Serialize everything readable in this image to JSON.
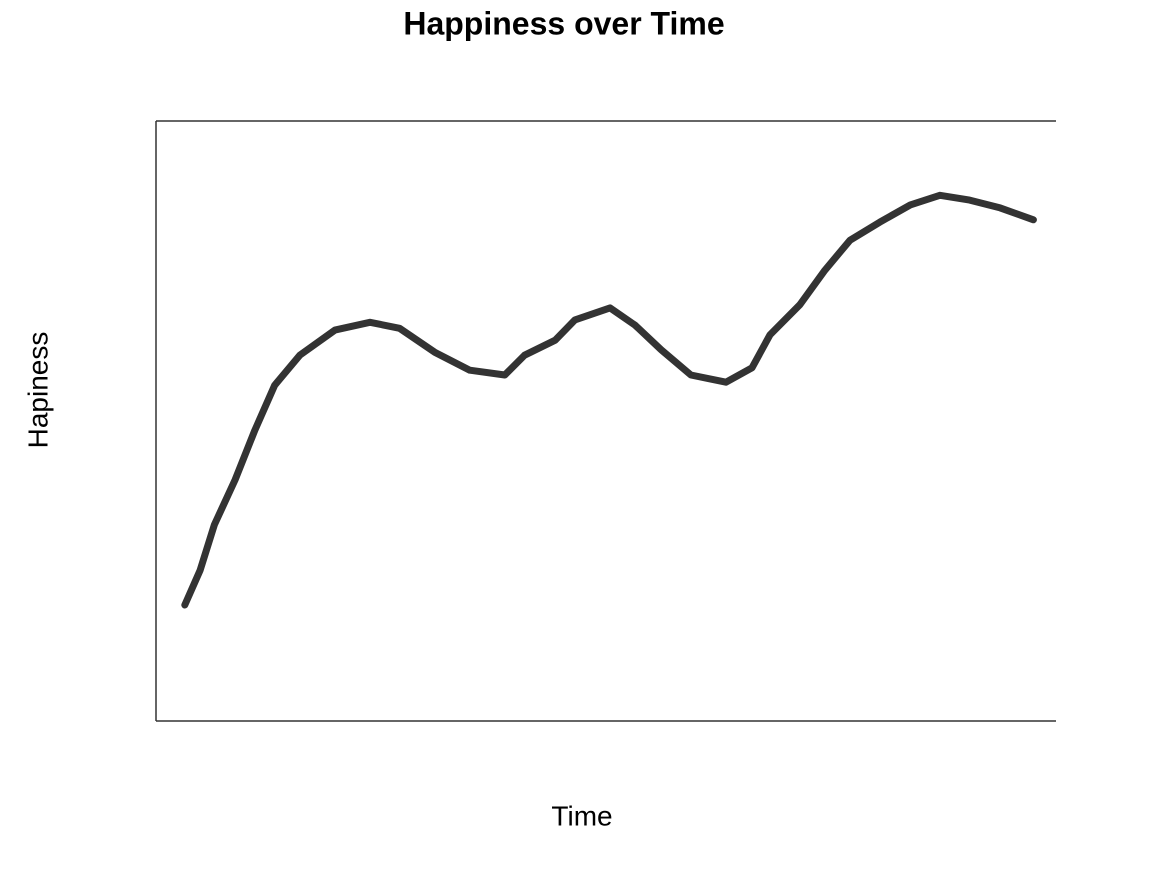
{
  "chart_data": {
    "type": "line",
    "title": "Happiness over Time",
    "x_label": "Time",
    "y_label": "Hapiness",
    "xlim": [
      0,
      100
    ],
    "ylim": [
      0,
      100
    ],
    "series": [
      {
        "color": "#333333",
        "x": [
          3.2,
          4.9,
          6.5,
          8.8,
          11.0,
          13.2,
          16.0,
          19.9,
          23.8,
          27.1,
          31.0,
          34.9,
          38.8,
          41.0,
          44.4,
          46.6,
          50.5,
          53.3,
          56.2,
          59.5,
          63.4,
          66.3,
          68.3,
          71.6,
          74.4,
          77.2,
          80.5,
          83.9,
          87.2,
          90.5,
          93.9,
          97.6
        ],
        "values": [
          19.2,
          25.0,
          32.6,
          40.1,
          48.4,
          55.9,
          60.9,
          65.1,
          66.4,
          65.4,
          61.4,
          58.4,
          57.6,
          60.9,
          63.4,
          66.8,
          68.8,
          65.9,
          61.8,
          57.6,
          56.4,
          58.8,
          64.3,
          69.3,
          75.1,
          80.1,
          83.1,
          86.0,
          87.6,
          86.8,
          85.5,
          83.5
        ]
      }
    ]
  }
}
